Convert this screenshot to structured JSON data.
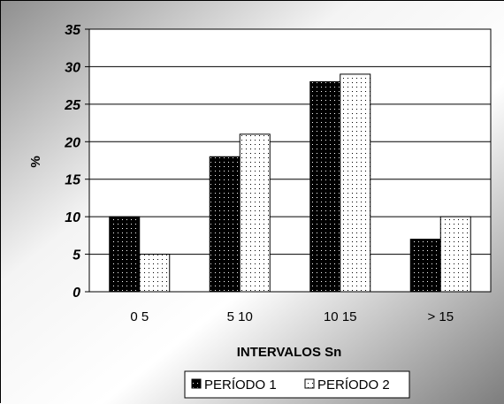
{
  "chart_data": {
    "type": "bar",
    "categories": [
      "0 5",
      "5 10",
      "10 15",
      "> 15"
    ],
    "series": [
      {
        "name": "PERÍODO 1",
        "values": [
          10,
          18,
          28,
          7
        ],
        "color": "#000000",
        "pattern": "dots-on-black"
      },
      {
        "name": "PERÍODO 2",
        "values": [
          5,
          21,
          29,
          10
        ],
        "color": "#ffffff",
        "pattern": "dots-on-white"
      }
    ],
    "xlabel": "INTERVALOS Sn",
    "ylabel": "%",
    "ylim": [
      0,
      35
    ],
    "yticks": [
      "0",
      "5",
      "10",
      "15",
      "20",
      "25",
      "30",
      "35"
    ],
    "grid": true,
    "legend_position": "bottom",
    "background": "gradient-gray"
  }
}
